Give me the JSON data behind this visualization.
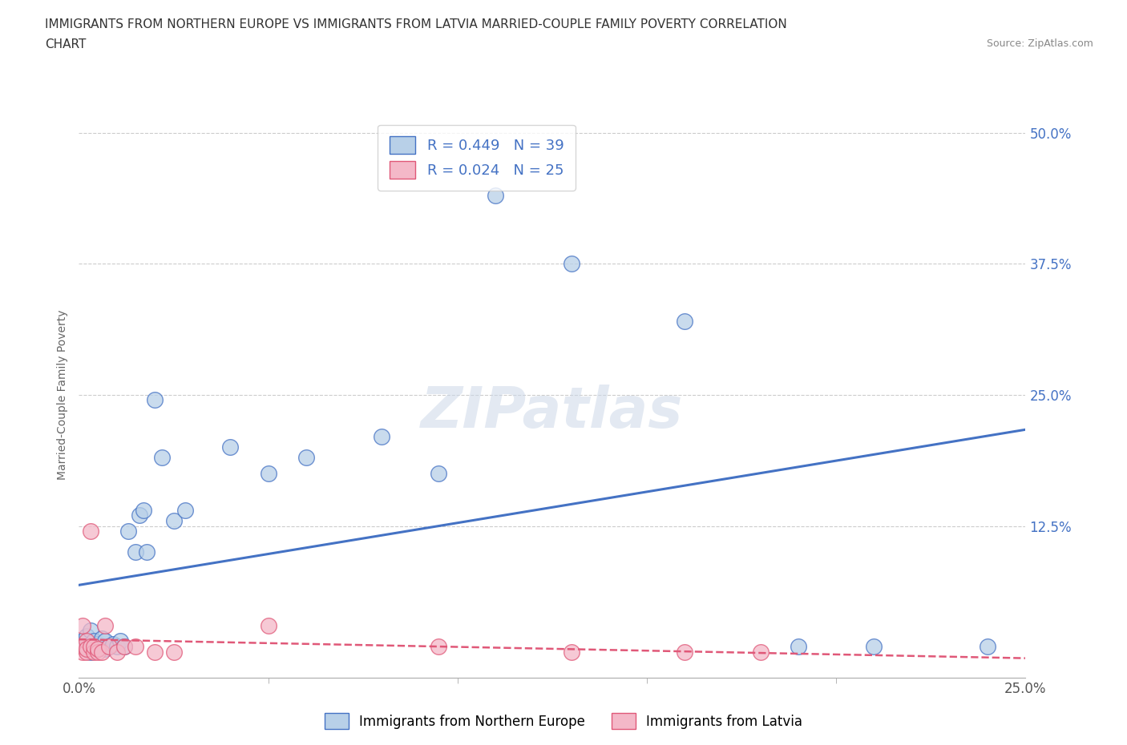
{
  "title_line1": "IMMIGRANTS FROM NORTHERN EUROPE VS IMMIGRANTS FROM LATVIA MARRIED-COUPLE FAMILY POVERTY CORRELATION",
  "title_line2": "CHART",
  "source": "Source: ZipAtlas.com",
  "ylabel_label": "Married-Couple Family Poverty",
  "xlim": [
    0.0,
    0.25
  ],
  "ylim": [
    -0.02,
    0.52
  ],
  "blue_R": 0.449,
  "blue_N": 39,
  "pink_R": 0.024,
  "pink_N": 25,
  "blue_color": "#b8d0e8",
  "pink_color": "#f4b8c8",
  "blue_line_color": "#4472c4",
  "pink_line_color": "#e05878",
  "watermark": "ZIPatlas",
  "blue_x": [
    0.001,
    0.001,
    0.002,
    0.002,
    0.003,
    0.003,
    0.004,
    0.004,
    0.005,
    0.005,
    0.006,
    0.006,
    0.007,
    0.007,
    0.008,
    0.009,
    0.01,
    0.011,
    0.012,
    0.013,
    0.015,
    0.016,
    0.017,
    0.018,
    0.02,
    0.022,
    0.025,
    0.028,
    0.04,
    0.05,
    0.06,
    0.08,
    0.095,
    0.11,
    0.13,
    0.16,
    0.19,
    0.21,
    0.24
  ],
  "blue_y": [
    0.01,
    0.015,
    0.008,
    0.02,
    0.005,
    0.025,
    0.01,
    0.015,
    0.008,
    0.012,
    0.01,
    0.018,
    0.008,
    0.015,
    0.01,
    0.012,
    0.01,
    0.015,
    0.01,
    0.12,
    0.1,
    0.135,
    0.14,
    0.1,
    0.245,
    0.19,
    0.13,
    0.14,
    0.2,
    0.175,
    0.19,
    0.21,
    0.175,
    0.44,
    0.375,
    0.32,
    0.01,
    0.01,
    0.01
  ],
  "pink_x": [
    0.001,
    0.001,
    0.001,
    0.002,
    0.002,
    0.002,
    0.003,
    0.003,
    0.004,
    0.004,
    0.005,
    0.005,
    0.006,
    0.007,
    0.008,
    0.01,
    0.012,
    0.015,
    0.02,
    0.025,
    0.05,
    0.095,
    0.13,
    0.16,
    0.18
  ],
  "pink_y": [
    0.005,
    0.01,
    0.03,
    0.005,
    0.015,
    0.008,
    0.01,
    0.12,
    0.005,
    0.01,
    0.005,
    0.008,
    0.005,
    0.03,
    0.01,
    0.005,
    0.01,
    0.01,
    0.005,
    0.005,
    0.03,
    0.01,
    0.005,
    0.005,
    0.005
  ],
  "legend_blue_label": "Immigrants from Northern Europe",
  "legend_pink_label": "Immigrants from Latvia",
  "background_color": "#ffffff",
  "grid_color": "#cccccc",
  "yticks": [
    0.125,
    0.25,
    0.375,
    0.5
  ],
  "ytick_labels": [
    "12.5%",
    "25.0%",
    "37.5%",
    "50.0%"
  ],
  "xticks": [
    0.0,
    0.25
  ],
  "xtick_labels": [
    "0.0%",
    "25.0%"
  ]
}
